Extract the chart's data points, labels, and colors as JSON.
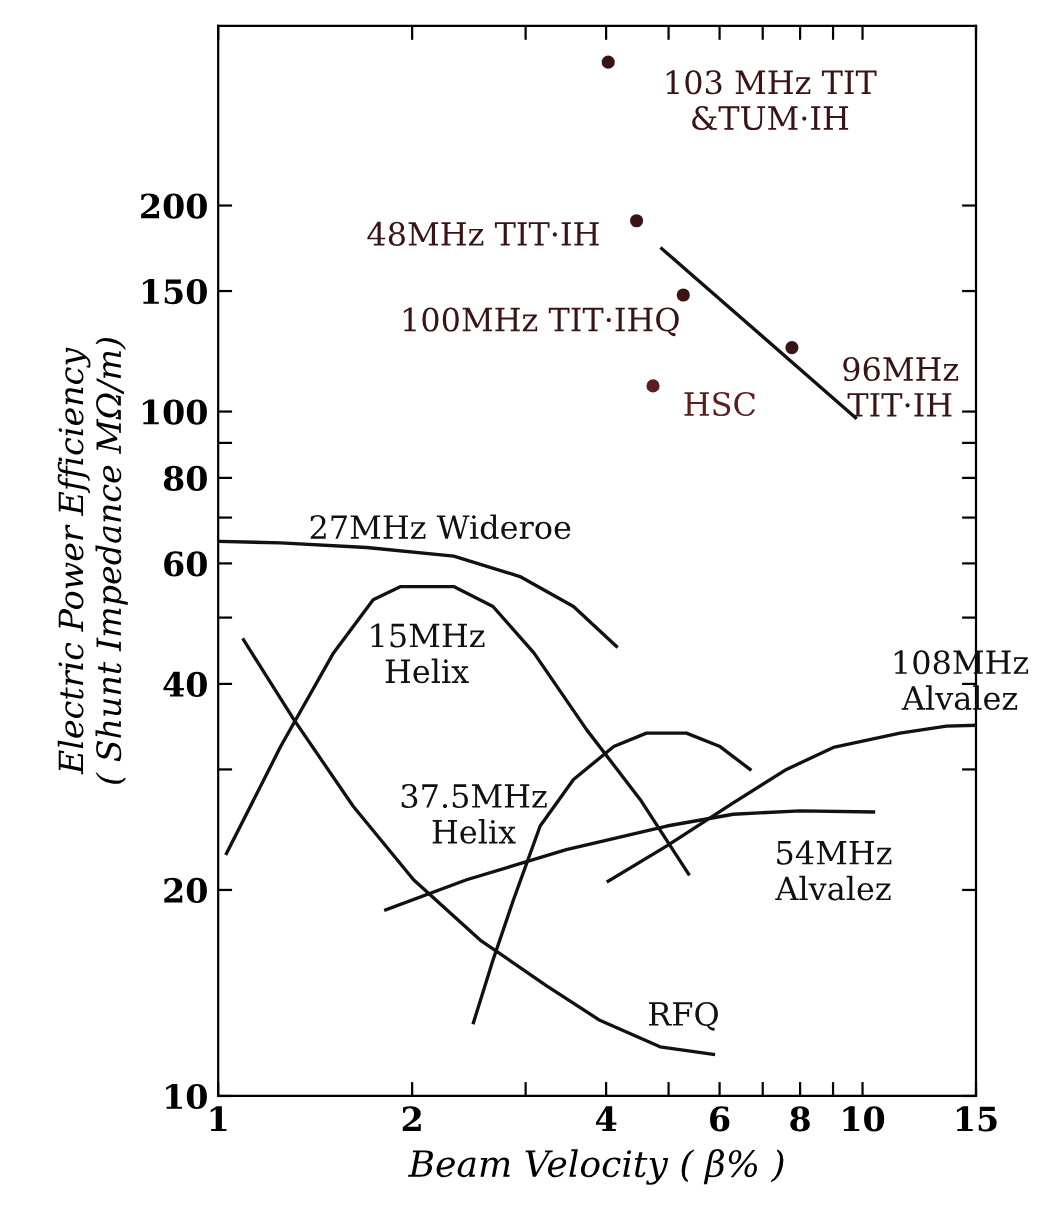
{
  "chart_data": {
    "type": "line",
    "xlabel": "Beam Velocity ( β% )",
    "ylabel": "Electric Power Efficiency\n( Shunt Impedance MΩ/m)",
    "log": "xy",
    "grid": false,
    "marker": "none",
    "line_style": "solid",
    "xlim": [
      1,
      15
    ],
    "ylim": [
      10,
      366
    ],
    "xticks": [
      1,
      2,
      {
        "value": 3,
        "label": null
      },
      4,
      {
        "value": 5,
        "label": null
      },
      6,
      {
        "value": 7,
        "label": null
      },
      8,
      {
        "value": 9,
        "label": null
      },
      10,
      15
    ],
    "yticks": [
      10,
      20,
      {
        "value": 30,
        "label": null
      },
      40,
      {
        "value": 50,
        "label": null
      },
      60,
      {
        "value": 70,
        "label": null
      },
      80,
      {
        "value": 90,
        "label": null
      },
      100,
      150,
      200
    ],
    "series": [
      {
        "name": "27MHz Wideroe",
        "color": "#111111",
        "x": [
          1.007,
          1.25,
          1.7,
          2.32,
          2.94,
          3.56,
          4.15
        ],
        "values": [
          64.6,
          64.3,
          63.3,
          61.5,
          57.4,
          51.9,
          45.4
        ]
      },
      {
        "name": "15MHz\nHelix",
        "color": "#111111",
        "x": [
          1.03,
          1.25,
          1.51,
          1.74,
          1.92,
          2.32,
          2.67,
          3.09,
          3.73,
          4.52,
          5.37
        ],
        "values": [
          22.6,
          32.4,
          44.4,
          53.1,
          55.5,
          55.5,
          51.9,
          44.4,
          34.3,
          27.1,
          21.1
        ]
      },
      {
        "name": "RFQ",
        "color": "#111111",
        "x": [
          1.095,
          1.31,
          1.62,
          2.01,
          2.55,
          3.23,
          3.91,
          4.85,
          5.87
        ],
        "values": [
          46.4,
          35.5,
          26.5,
          20.7,
          16.9,
          14.5,
          12.9,
          11.8,
          11.5
        ]
      },
      {
        "name": "37.5MHz\nHelix",
        "color": "#111111",
        "x": [
          2.49,
          2.67,
          2.87,
          3.16,
          3.56,
          4.11,
          4.62,
          5.33,
          6.01,
          6.69
        ],
        "values": [
          12.8,
          15.8,
          19.3,
          24.8,
          29.0,
          32.4,
          33.9,
          33.9,
          32.4,
          30.0
        ]
      },
      {
        "name": "54MHz\nAlvalez",
        "color": "#111111",
        "x": [
          1.82,
          2.43,
          3.47,
          4.97,
          6.3,
          8.0,
          10.4
        ],
        "values": [
          18.7,
          20.7,
          22.9,
          24.8,
          25.8,
          26.1,
          26.0
        ]
      },
      {
        "name": "108MHz\nAlvalez",
        "color": "#111111",
        "x": [
          4.03,
          4.97,
          6.3,
          7.62,
          9.01,
          11.43,
          13.5,
          15.0
        ],
        "values": [
          20.6,
          23.2,
          26.8,
          30.0,
          32.3,
          33.9,
          34.7,
          34.8
        ]
      },
      {
        "color": "#111111",
        "x": [
          4.88,
          9.75
        ],
        "values": [
          173,
          98
        ]
      },
      {
        "type": "scatter",
        "marker": "circle",
        "name": "103 MHz TIT\n&TUM·IH",
        "color": "#3a1414",
        "x": [
          4.03
        ],
        "values": [
          324
        ]
      },
      {
        "type": "scatter",
        "marker": "circle",
        "name": "48MHz TIT·IH",
        "color": "#3a1414",
        "x": [
          4.46
        ],
        "values": [
          190
        ]
      },
      {
        "type": "scatter",
        "marker": "circle",
        "name": "100MHz TIT·IHQ",
        "color": "#3a1414",
        "x": [
          5.27
        ],
        "values": [
          148
        ]
      },
      {
        "type": "scatter",
        "marker": "circle",
        "name": "96MHz\nTIT·IH",
        "color": "#3a1414",
        "x": [
          7.77
        ],
        "values": [
          124
        ]
      },
      {
        "type": "scatter",
        "marker": "circle",
        "name": "HSC",
        "color": "#5a2020",
        "x": [
          4.73
        ],
        "values": [
          109
        ]
      }
    ]
  }
}
